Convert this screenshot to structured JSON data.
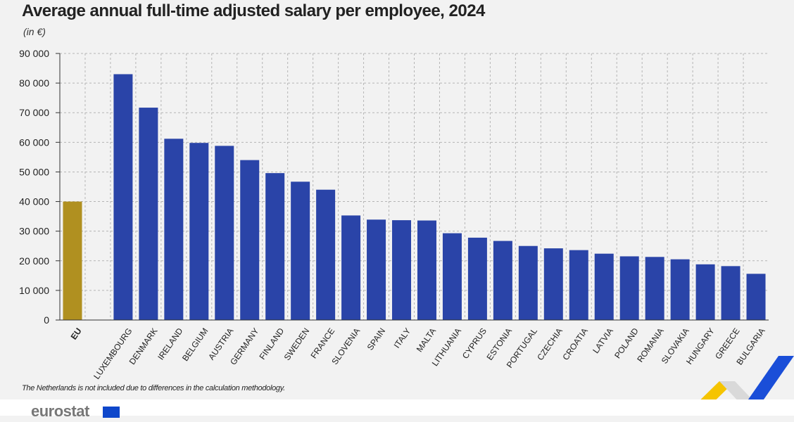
{
  "title": "Average annual full-time adjusted salary per employee, 2024",
  "unit": "(in €)",
  "footnote": "The Netherlands is not included due to differences in the calculation methodology.",
  "brand": "eurostat",
  "colors": {
    "eu_bar": "#b09020",
    "country_bar": "#2a44a8",
    "grid": "#b5b5b5",
    "accent_yellow": "#f5c400",
    "accent_blue": "#1a4ed8"
  },
  "chart_data": {
    "type": "bar",
    "categories": [
      "EU",
      "LUXEMBOURG",
      "DENMARK",
      "IRELAND",
      "BELGIUM",
      "AUSTRIA",
      "GERMANY",
      "FINLAND",
      "SWEDEN",
      "FRANCE",
      "SLOVENIA",
      "SPAIN",
      "ITALY",
      "MALTA",
      "LITHUANIA",
      "CYPRUS",
      "ESTONIA",
      "PORTUGAL",
      "CZECHIA",
      "CROATIA",
      "LATVIA",
      "POLAND",
      "ROMANIA",
      "SLOVAKIA",
      "HUNGARY",
      "GREECE",
      "BULGARIA"
    ],
    "values": [
      40000,
      83000,
      71700,
      61200,
      59800,
      58800,
      54000,
      49600,
      46700,
      44000,
      35300,
      33900,
      33700,
      33600,
      29300,
      27800,
      26700,
      25000,
      24200,
      23600,
      22400,
      21500,
      21300,
      20500,
      18800,
      18200,
      15600
    ],
    "title": "Average annual full-time adjusted salary per employee, 2024",
    "ylabel": "(in €)",
    "ylim": [
      0,
      90000
    ],
    "yticks": [
      "0",
      "10 000",
      "20 000",
      "30 000",
      "40 000",
      "50 000",
      "60 000",
      "70 000",
      "80 000",
      "90 000"
    ],
    "grid": true
  }
}
